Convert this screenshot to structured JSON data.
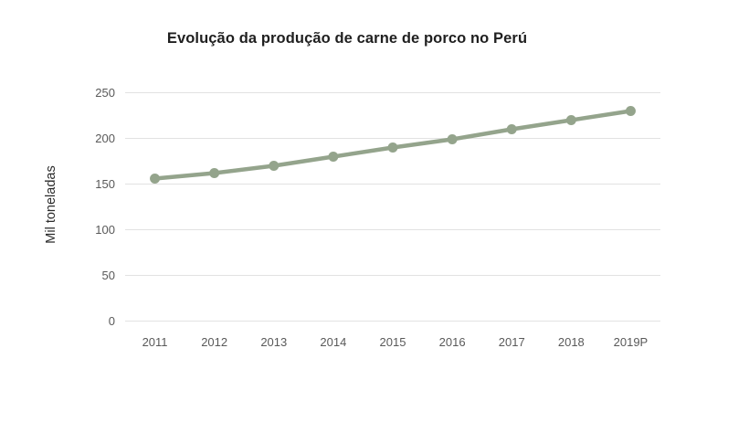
{
  "chart_data": {
    "type": "line",
    "title": "Evolução da produção de carne de porco no Perú",
    "xlabel": "",
    "ylabel": "Mil toneladas",
    "categories": [
      "2011",
      "2012",
      "2013",
      "2014",
      "2015",
      "2016",
      "2017",
      "2018",
      "2019P"
    ],
    "values": [
      156,
      162,
      170,
      180,
      190,
      199,
      210,
      220,
      230
    ],
    "ylim": [
      0,
      250
    ],
    "yticks": [
      0,
      50,
      100,
      150,
      200,
      250
    ],
    "grid": "horizontal-only",
    "legend": false,
    "marker": "circle",
    "colors": {
      "line": "#94a48c",
      "gridline": "#e2e2e2",
      "tick_label": "#595959",
      "title": "#1f1f1f",
      "background": "#ffffff"
    }
  }
}
